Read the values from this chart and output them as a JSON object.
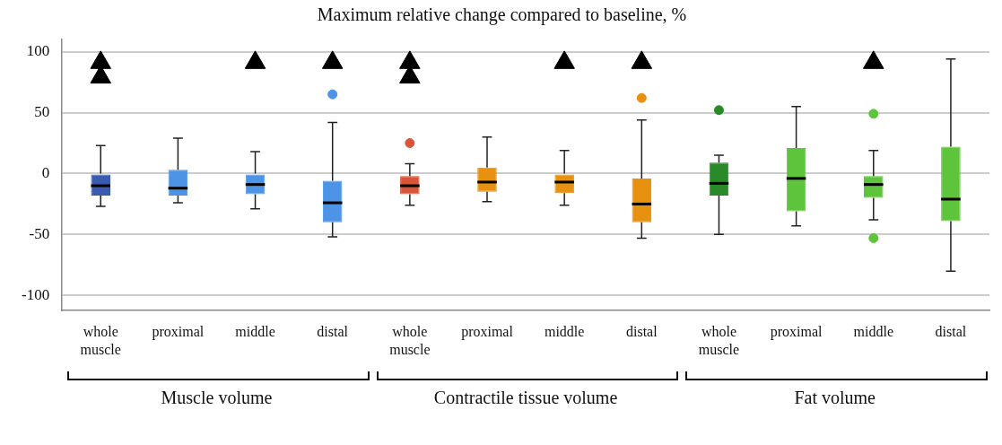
{
  "chart_data": {
    "type": "box",
    "title": "Maximum relative change compared to baseline, %",
    "categories": [
      "whole muscle",
      "proximal",
      "middle",
      "distal",
      "whole muscle",
      "proximal",
      "middle",
      "distal",
      "whole muscle",
      "proximal",
      "middle",
      "distal"
    ],
    "colors": [
      "#3a5bb0",
      "#4d94e6",
      "#4d94e6",
      "#4d94e6",
      "#d9553a",
      "#e8900f",
      "#e8900f",
      "#e8900f",
      "#2a8a2a",
      "#5ec43c",
      "#5ec43c",
      "#5ec43c"
    ],
    "boxes": [
      {
        "low": -27,
        "q1": -18,
        "median": -10,
        "q3": 0,
        "high": 23
      },
      {
        "low": -24,
        "q1": -18,
        "median": -12,
        "q3": 3,
        "high": 29
      },
      {
        "low": -29,
        "q1": -17,
        "median": -9,
        "q3": 0,
        "high": 18
      },
      {
        "low": -52,
        "q1": -40,
        "median": -24,
        "q3": -6,
        "high": 42,
        "outliers": [
          65
        ]
      },
      {
        "low": -26,
        "q1": -17,
        "median": -10,
        "q3": -2,
        "high": 8,
        "outliers": [
          25
        ]
      },
      {
        "low": -23,
        "q1": -15,
        "median": -7,
        "q3": 5,
        "high": 30
      },
      {
        "low": -26,
        "q1": -16,
        "median": -7,
        "q3": 0,
        "high": 19
      },
      {
        "low": -53,
        "q1": -40,
        "median": -25,
        "q3": -4,
        "high": 44,
        "outliers": [
          62
        ]
      },
      {
        "low": -50,
        "q1": -18,
        "median": -8,
        "q3": 9,
        "high": 15,
        "outliers": [
          52
        ]
      },
      {
        "low": -43,
        "q1": -31,
        "median": -4,
        "q3": 21,
        "high": 55
      },
      {
        "low": -38,
        "q1": -20,
        "median": -9,
        "q3": -2,
        "high": 19,
        "outliers": [
          49,
          -53
        ]
      },
      {
        "low": -80,
        "q1": -39,
        "median": -21,
        "q3": 22,
        "high": 94
      }
    ],
    "series": [
      {
        "type": "scatter",
        "color": "#000000",
        "values": [
          91,
          null,
          91,
          91,
          91,
          null,
          91,
          91,
          null,
          null,
          91,
          null
        ]
      },
      {
        "type": "scatter",
        "color": "#000000",
        "values": [
          79,
          null,
          null,
          null,
          79,
          null,
          null,
          null,
          null,
          null,
          null,
          null
        ]
      }
    ],
    "marker": "triangle",
    "ylim": [
      -112,
      110
    ],
    "yticks": [
      -100,
      -50,
      0,
      50,
      100
    ],
    "grid": "y",
    "legend": false,
    "annotations": [
      "Muscle volume",
      "Contractile tissue volume",
      "Fat volume"
    ]
  }
}
